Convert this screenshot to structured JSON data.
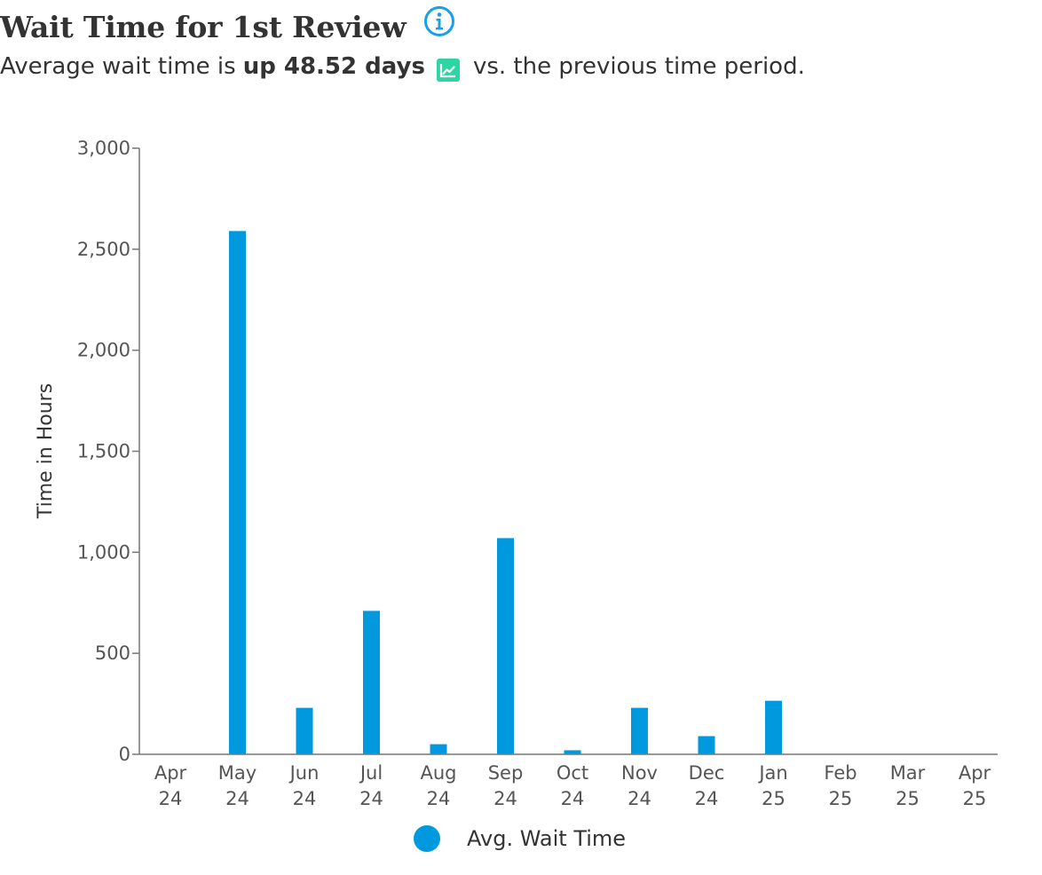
{
  "header": {
    "title": "Wait Time for 1st Review",
    "info_icon": "info-circle-icon",
    "subtitle_prefix": "Average wait time is",
    "subtitle_strong": "up 48.52 days",
    "trend_icon": "trend-up-icon",
    "subtitle_suffix": "vs. the previous time period."
  },
  "colors": {
    "bar": "#0099dd",
    "trend_icon": "#2fd4a4",
    "info_icon": "#1aa0e6",
    "axis": "#777777"
  },
  "chart_data": {
    "type": "bar",
    "ylabel": "Time in Hours",
    "ylim": [
      0,
      3000
    ],
    "yticks": [
      0,
      500,
      1000,
      1500,
      2000,
      2500,
      3000
    ],
    "ytick_labels": [
      "0",
      "500",
      "1,000",
      "1,500",
      "2,000",
      "2,500",
      "3,000"
    ],
    "categories": [
      [
        "Apr",
        "24"
      ],
      [
        "May",
        "24"
      ],
      [
        "Jun",
        "24"
      ],
      [
        "Jul",
        "24"
      ],
      [
        "Aug",
        "24"
      ],
      [
        "Sep",
        "24"
      ],
      [
        "Oct",
        "24"
      ],
      [
        "Nov",
        "24"
      ],
      [
        "Dec",
        "24"
      ],
      [
        "Jan",
        "25"
      ],
      [
        "Feb",
        "25"
      ],
      [
        "Mar",
        "25"
      ],
      [
        "Apr",
        "25"
      ]
    ],
    "series": [
      {
        "name": "Avg. Wait Time",
        "values": [
          0,
          2590,
          230,
          710,
          50,
          1070,
          20,
          230,
          90,
          265,
          0,
          0,
          0
        ]
      }
    ],
    "grid": false,
    "legend_position": "bottom-center"
  }
}
